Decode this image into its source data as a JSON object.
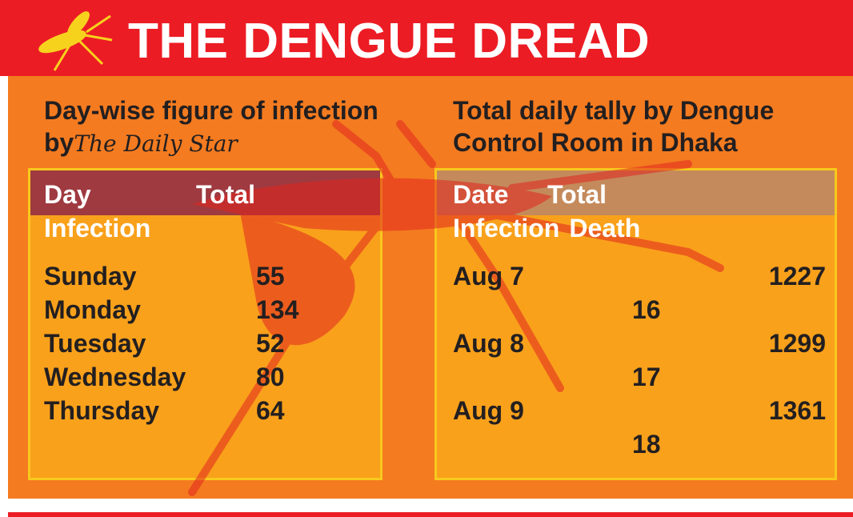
{
  "header": {
    "title": "THE DENGUE DREAD"
  },
  "left": {
    "title": "Day-wise figure of infection by",
    "logo": "The Daily Star",
    "columns": [
      "Day",
      "Total Infection"
    ],
    "rows": [
      [
        "Sunday",
        55
      ],
      [
        "Monday",
        134
      ],
      [
        "Tuesday",
        52
      ],
      [
        "Wednesday",
        80
      ],
      [
        "Thursday",
        64
      ]
    ]
  },
  "right": {
    "title": "Total daily tally by Dengue Control Room in Dhaka",
    "columns": [
      "Date",
      "Total Infection",
      "Death"
    ],
    "rows": [
      [
        "Aug 7",
        1227,
        16
      ],
      [
        "Aug 8",
        1299,
        17
      ],
      [
        "Aug 9",
        1361,
        18
      ]
    ]
  }
}
